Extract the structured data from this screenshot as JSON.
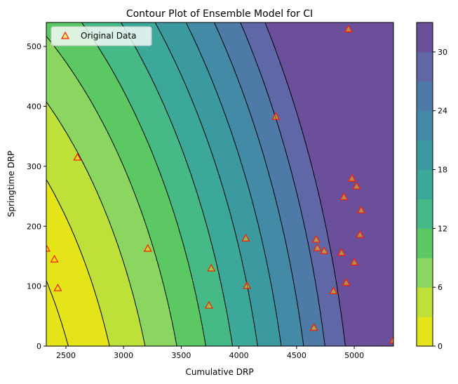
{
  "chart_data": {
    "type": "contour",
    "title": "Contour Plot of Ensemble Model for CI",
    "xlabel": "Cumulative DRP",
    "ylabel": "Springtime DRP",
    "xlim": [
      2330,
      5340
    ],
    "ylim": [
      0,
      540
    ],
    "xticks": [
      2500,
      3000,
      3500,
      4000,
      4500,
      5000
    ],
    "yticks": [
      0,
      100,
      200,
      300,
      400,
      500
    ],
    "grid": false,
    "legend": {
      "position": "upper-left",
      "label": "Original Data"
    },
    "colorbar": {
      "range": [
        0,
        33
      ],
      "ticks": [
        0,
        6,
        12,
        18,
        24,
        30
      ],
      "levels": [
        0,
        3,
        6,
        9,
        12,
        15,
        18,
        21,
        24,
        27,
        30,
        33
      ],
      "colors": [
        "#e5e419",
        "#bee139",
        "#8ad660",
        "#5bc864",
        "#45ba86",
        "#3ca89a",
        "#3a9aa0",
        "#438aa6",
        "#4d7aa6",
        "#5f67a6",
        "#6b4f9a"
      ]
    },
    "contour_levels": [
      0,
      3,
      6,
      9,
      12,
      15,
      18,
      21,
      24,
      27,
      30
    ],
    "points": [
      {
        "x": 2330,
        "y": 163
      },
      {
        "x": 2400,
        "y": 145
      },
      {
        "x": 2430,
        "y": 97
      },
      {
        "x": 2600,
        "y": 315
      },
      {
        "x": 3210,
        "y": 163
      },
      {
        "x": 3740,
        "y": 68
      },
      {
        "x": 3760,
        "y": 130
      },
      {
        "x": 4060,
        "y": 180
      },
      {
        "x": 4070,
        "y": 101
      },
      {
        "x": 4320,
        "y": 383
      },
      {
        "x": 4650,
        "y": 31
      },
      {
        "x": 4670,
        "y": 178
      },
      {
        "x": 4680,
        "y": 164
      },
      {
        "x": 4740,
        "y": 159
      },
      {
        "x": 4820,
        "y": 92
      },
      {
        "x": 4890,
        "y": 156
      },
      {
        "x": 4910,
        "y": 249
      },
      {
        "x": 4930,
        "y": 106
      },
      {
        "x": 4950,
        "y": 529
      },
      {
        "x": 4980,
        "y": 280
      },
      {
        "x": 5000,
        "y": 140
      },
      {
        "x": 5020,
        "y": 267
      },
      {
        "x": 5050,
        "y": 186
      },
      {
        "x": 5060,
        "y": 227
      },
      {
        "x": 5340,
        "y": 10
      }
    ]
  }
}
